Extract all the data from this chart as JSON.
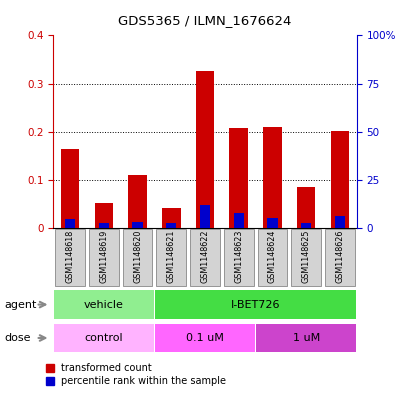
{
  "title": "GDS5365 / ILMN_1676624",
  "samples": [
    "GSM1148618",
    "GSM1148619",
    "GSM1148620",
    "GSM1148621",
    "GSM1148622",
    "GSM1148623",
    "GSM1148624",
    "GSM1148625",
    "GSM1148626"
  ],
  "red_values": [
    0.165,
    0.052,
    0.11,
    0.042,
    0.325,
    0.207,
    0.21,
    0.085,
    0.202
  ],
  "blue_values": [
    0.018,
    0.01,
    0.012,
    0.01,
    0.048,
    0.03,
    0.02,
    0.01,
    0.025
  ],
  "ylim": [
    0,
    0.4
  ],
  "yticks_left": [
    0,
    0.1,
    0.2,
    0.3,
    0.4
  ],
  "ytick_labels_left": [
    "0",
    "0.1",
    "0.2",
    "0.3",
    "0.4"
  ],
  "ytick_labels_right": [
    "0",
    "25",
    "50",
    "75",
    "100%"
  ],
  "bar_color_red": "#CC0000",
  "bar_color_blue": "#0000CC",
  "legend_red": "transformed count",
  "legend_blue": "percentile rank within the sample",
  "tick_color_left": "#CC0000",
  "tick_color_right": "#0000CC",
  "bar_width": 0.55,
  "bg_color": "#D3D3D3",
  "vehicle_color": "#90EE90",
  "ibet_color": "#44DD44",
  "control_color": "#FFB3FF",
  "dose01_color": "#FF66FF",
  "dose1_color": "#CC44CC"
}
